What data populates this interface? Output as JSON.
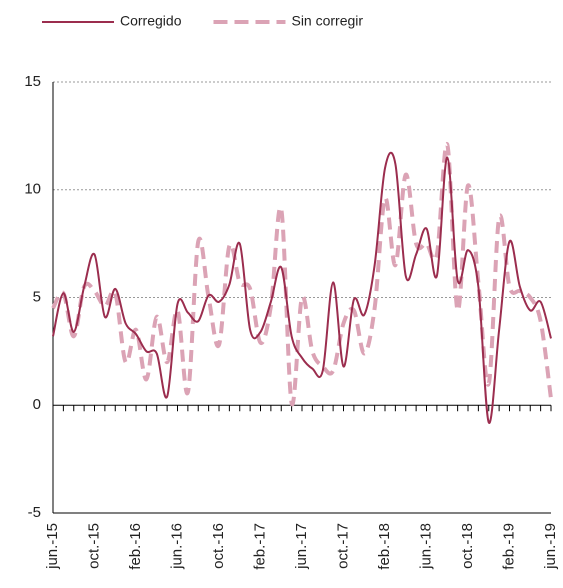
{
  "chart_data": {
    "type": "line",
    "categories": [
      "jun.-15",
      null,
      null,
      null,
      "oct.-15",
      null,
      null,
      null,
      "feb.-16",
      null,
      null,
      null,
      "jun.-16",
      null,
      null,
      null,
      "oct.-16",
      null,
      null,
      null,
      "feb.-17",
      null,
      null,
      null,
      "jun.-17",
      null,
      null,
      null,
      "oct.-17",
      null,
      null,
      null,
      "feb.-18",
      null,
      null,
      null,
      "jun.-18",
      null,
      null,
      null,
      "oct.-18",
      null,
      null,
      null,
      "feb.-19",
      null,
      null,
      null,
      "jun.-19"
    ],
    "series": [
      {
        "name": "Corregido",
        "color": "#9b2d4e",
        "dashed": false,
        "values": [
          3.2,
          5.2,
          3.4,
          5.5,
          7.0,
          4.1,
          5.4,
          3.8,
          3.3,
          2.5,
          2.4,
          0.4,
          4.7,
          4.3,
          3.9,
          5.1,
          4.8,
          5.6,
          7.5,
          3.5,
          3.4,
          4.8,
          6.4,
          3.2,
          2.2,
          1.7,
          1.6,
          5.7,
          1.8,
          4.9,
          4.2,
          6.5,
          11.0,
          11.2,
          6.0,
          7.0,
          8.2,
          6.0,
          11.5,
          5.8,
          7.2,
          5.5,
          -0.8,
          3.5,
          7.6,
          5.5,
          4.4,
          4.8,
          3.1
        ]
      },
      {
        "name": "Sin corregir",
        "color": "#dba3b5",
        "dashed": true,
        "values": [
          4.5,
          5.2,
          3.2,
          5.5,
          5.3,
          4.6,
          5.2,
          2.0,
          3.5,
          1.2,
          4.1,
          2.0,
          4.4,
          0.6,
          7.6,
          5.0,
          2.8,
          7.4,
          5.7,
          5.4,
          2.9,
          4.6,
          9.1,
          0.1,
          5.0,
          2.5,
          1.8,
          1.6,
          3.8,
          4.4,
          2.4,
          4.5,
          9.6,
          6.5,
          10.7,
          7.5,
          7.5,
          7.0,
          12.1,
          4.4,
          10.2,
          5.7,
          1.0,
          8.7,
          5.5,
          5.3,
          5.0,
          3.9,
          0.3
        ]
      }
    ],
    "ylim": [
      -5,
      15
    ],
    "yticks": [
      -5,
      0,
      5,
      10,
      15
    ],
    "grid": true,
    "legend": "top"
  }
}
